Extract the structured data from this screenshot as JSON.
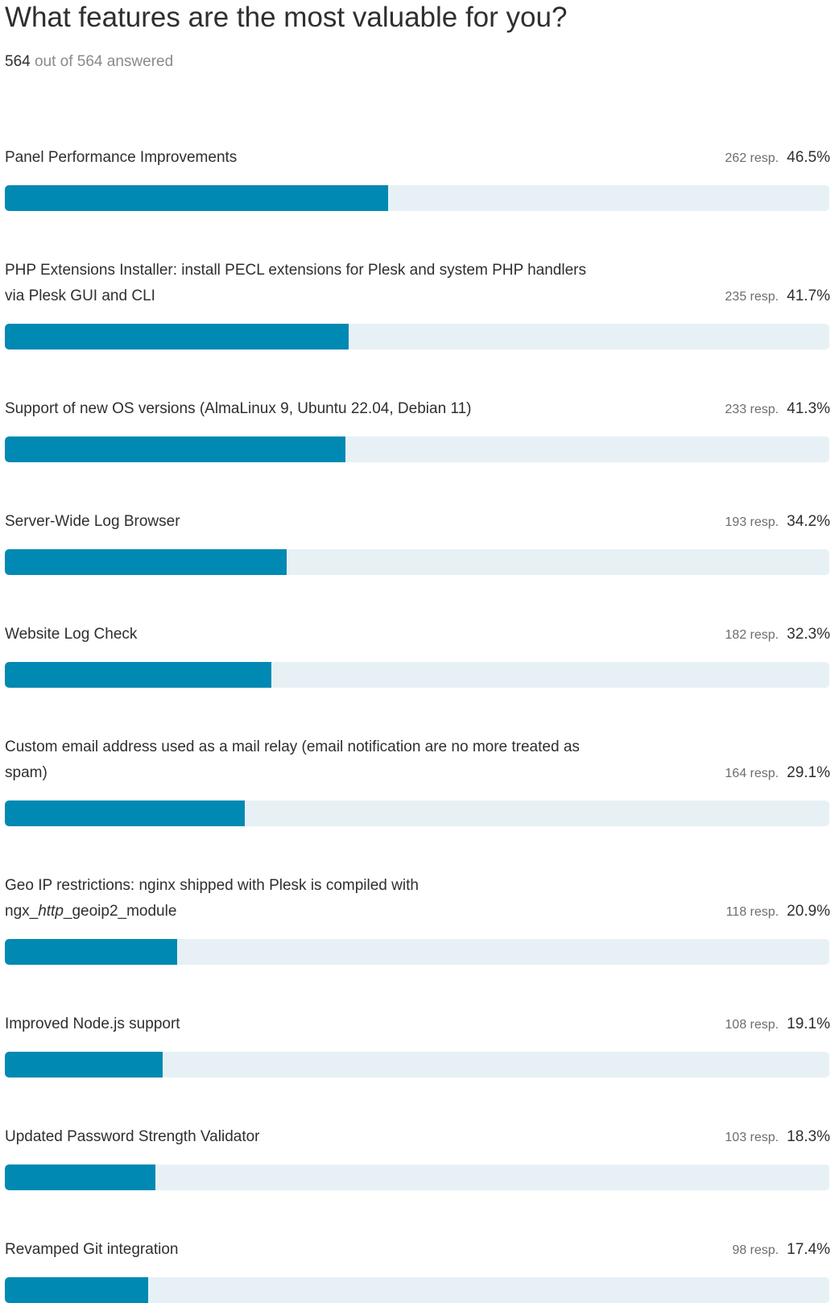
{
  "question": {
    "title": "What features are the most valuable for you?",
    "answered_count": "564",
    "answered_rest": "out of 564 answered"
  },
  "colors": {
    "bar_fill": "#0089b2",
    "bar_track": "#e7f1f5"
  },
  "chart_data": {
    "type": "bar",
    "orientation": "horizontal",
    "title": "What features are the most valuable for you?",
    "xlim": [
      0,
      100
    ],
    "categories": [
      "Panel Performance Improvements",
      "PHP Extensions Installer: install PECL extensions for Plesk and system PHP handlers via Plesk GUI and CLI",
      "Support of new OS versions (AlmaLinux 9, Ubuntu 22.04, Debian 11)",
      "Server-Wide Log Browser",
      "Website Log Check",
      "Custom email address used as a mail relay (email notification are no more treated as spam)",
      "Geo IP restrictions: nginx shipped with Plesk is compiled with ngx_http_geoip2_module",
      "Improved Node.js support",
      "Updated Password Strength Validator",
      "Revamped Git integration"
    ],
    "values": [
      46.5,
      41.7,
      41.3,
      34.2,
      32.3,
      29.1,
      20.9,
      19.1,
      18.3,
      17.4
    ],
    "responses": [
      262,
      235,
      233,
      193,
      182,
      164,
      118,
      108,
      103,
      98
    ],
    "items": [
      {
        "line1": "Panel Performance Improvements",
        "resp_label": "262 resp.",
        "pct_label": "46.5%",
        "value": 46.5
      },
      {
        "line1": "PHP Extensions Installer: install PECL extensions for Plesk and system PHP handlers",
        "line2": "via Plesk GUI and CLI",
        "resp_label": "235 resp.",
        "pct_label": "41.7%",
        "value": 41.7
      },
      {
        "line1": "Support of new OS versions (AlmaLinux 9, Ubuntu 22.04, Debian 11)",
        "resp_label": "233 resp.",
        "pct_label": "41.3%",
        "value": 41.3
      },
      {
        "line1": "Server-Wide Log Browser",
        "resp_label": "193 resp.",
        "pct_label": "34.2%",
        "value": 34.2
      },
      {
        "line1": "Website Log Check",
        "resp_label": "182 resp.",
        "pct_label": "32.3%",
        "value": 32.3
      },
      {
        "line1": "Custom email address used as a mail relay (email notification are no more treated as",
        "line2": "spam)",
        "resp_label": "164 resp.",
        "pct_label": "29.1%",
        "value": 29.1
      },
      {
        "line1": "Geo IP restrictions: nginx shipped with Plesk is compiled with",
        "line2_prefix": "ngx_",
        "line2_italic": "http",
        "line2_suffix": "_geoip2_module",
        "resp_label": "118 resp.",
        "pct_label": "20.9%",
        "value": 20.9
      },
      {
        "line1": "Improved Node.js support",
        "resp_label": "108 resp.",
        "pct_label": "19.1%",
        "value": 19.1
      },
      {
        "line1": "Updated Password Strength Validator",
        "resp_label": "103 resp.",
        "pct_label": "18.3%",
        "value": 18.3
      },
      {
        "line1": "Revamped Git integration",
        "resp_label": "98 resp.",
        "pct_label": "17.4%",
        "value": 17.4
      }
    ]
  }
}
